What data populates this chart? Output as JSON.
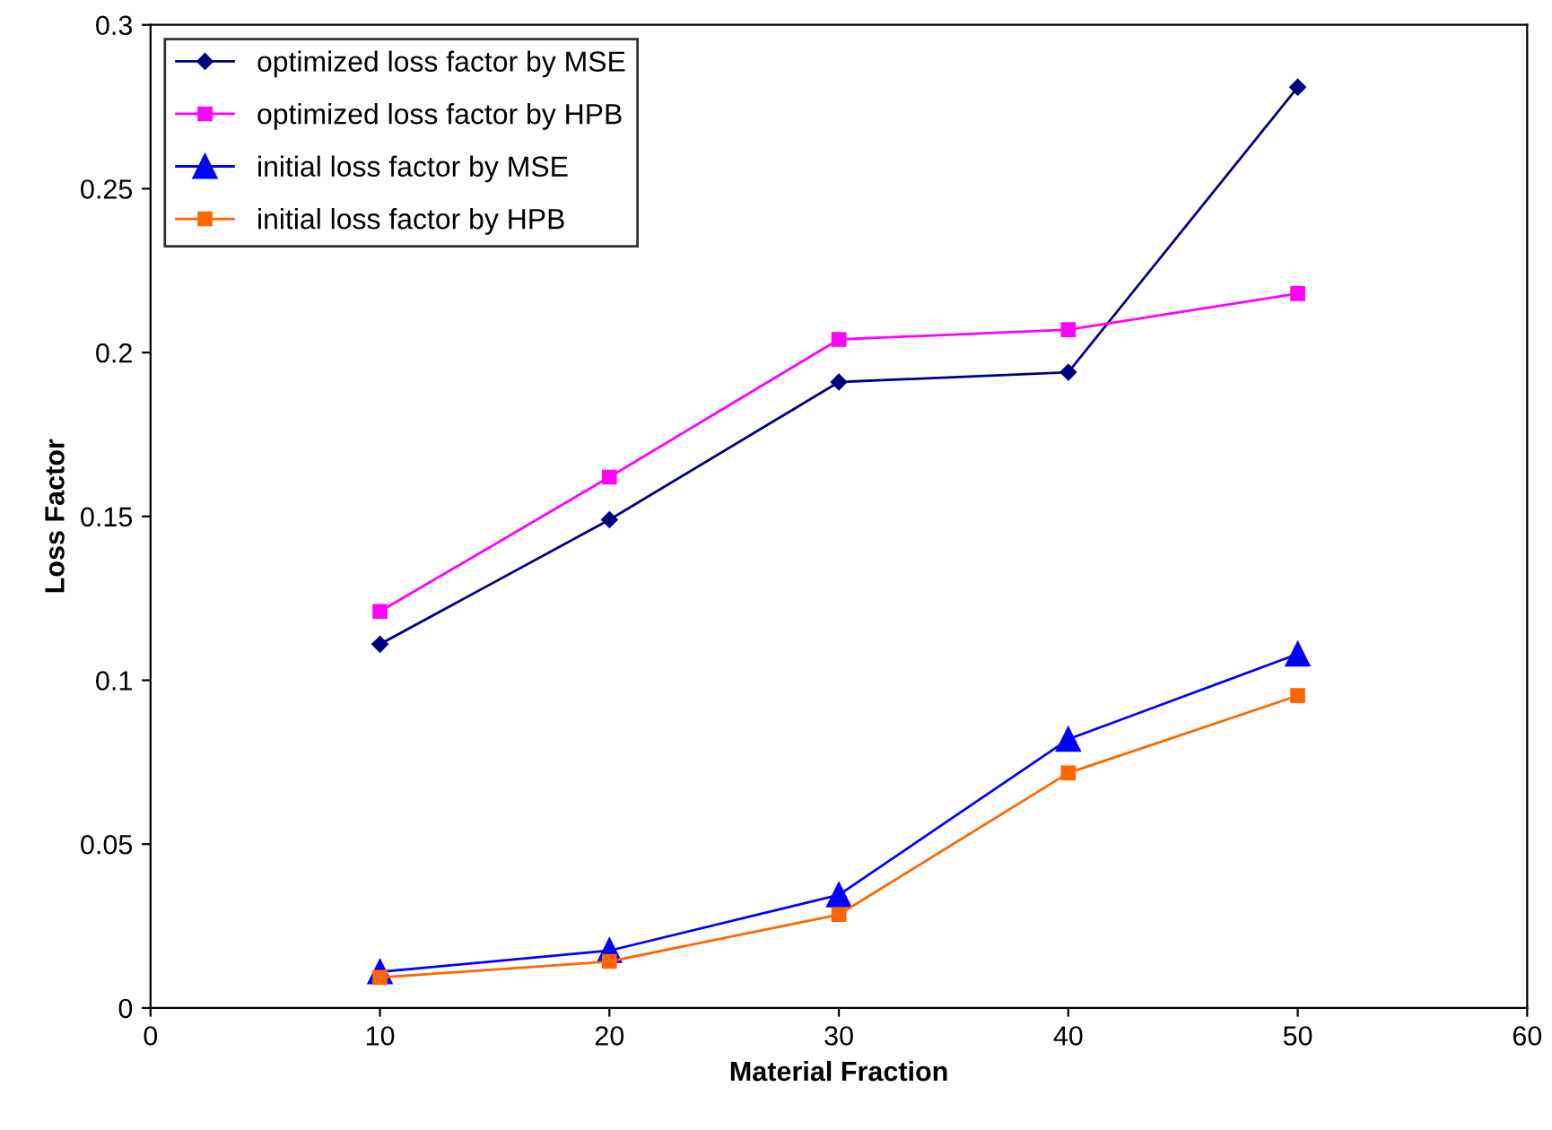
{
  "chart_data": {
    "type": "line",
    "xlabel": "Material Fraction",
    "ylabel": "Loss Factor",
    "x": [
      10,
      20,
      30,
      40,
      50
    ],
    "series": [
      {
        "name": "optimized loss factor by MSE",
        "color": "#000080",
        "marker": "diamond",
        "values": [
          0.111,
          0.149,
          0.191,
          0.194,
          0.281
        ]
      },
      {
        "name": "optimized loss factor by HPB",
        "color": "#ff00ff",
        "marker": "square",
        "values": [
          0.121,
          0.162,
          0.204,
          0.207,
          0.218
        ]
      },
      {
        "name": "initial loss factor by MSE",
        "color": "#0000ff",
        "marker": "triangle",
        "values": [
          0.011,
          0.0175,
          0.0345,
          0.082,
          0.108
        ]
      },
      {
        "name": "initial loss factor by HPB",
        "color": "#ff6600",
        "marker": "square",
        "values": [
          0.0093,
          0.0142,
          0.0285,
          0.0717,
          0.0953
        ]
      }
    ],
    "xlim": [
      0,
      60
    ],
    "xticks": [
      0,
      10,
      20,
      30,
      40,
      50,
      60
    ],
    "ylim": [
      0,
      0.3
    ],
    "yticks": [
      0,
      0.05,
      0.1,
      0.15,
      0.2,
      0.25,
      0.3
    ],
    "grid": false,
    "legend": "top left",
    "line_style": "solid"
  }
}
